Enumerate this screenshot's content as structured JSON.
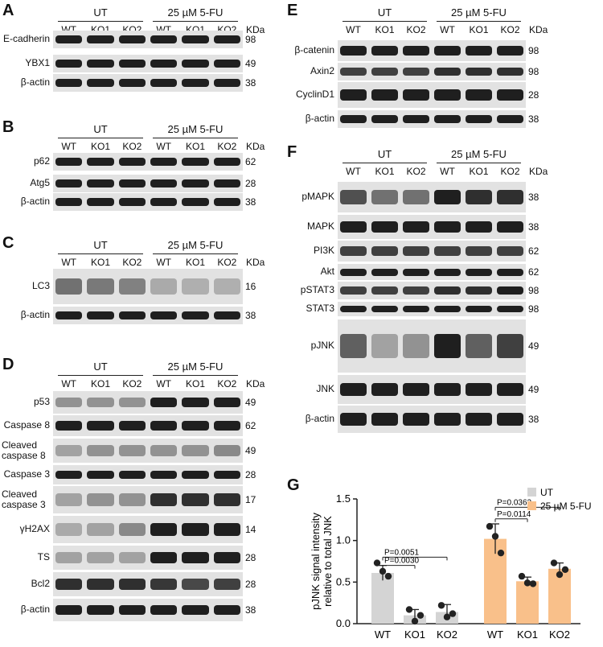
{
  "panels": [
    {
      "label": "A",
      "groups": [
        "UT",
        "25 µM 5-FU"
      ],
      "lanes": [
        "WT",
        "KO1",
        "KO2",
        "WT",
        "KO1",
        "KO2"
      ],
      "kda": "KDa",
      "rows": [
        {
          "name": "E-cadherin",
          "mw": [
            "98"
          ]
        },
        {
          "name": "YBX1",
          "mw": [
            "49"
          ]
        },
        {
          "name": "β-actin",
          "mw": [
            "38"
          ]
        }
      ]
    },
    {
      "label": "B",
      "groups": [
        "UT",
        "25 µM 5-FU"
      ],
      "lanes": [
        "WT",
        "KO1",
        "KO2",
        "WT",
        "KO1",
        "KO2"
      ],
      "kda": "KDa",
      "rows": [
        {
          "name": "p62",
          "mw": [
            "62"
          ]
        },
        {
          "name": "Atg5",
          "mw": [
            "28"
          ]
        },
        {
          "name": "β-actin",
          "mw": [
            "38"
          ]
        }
      ]
    },
    {
      "label": "C",
      "groups": [
        "UT",
        "25 µM 5-FU"
      ],
      "lanes": [
        "WT",
        "KO1",
        "KO2",
        "WT",
        "KO1",
        "KO2"
      ],
      "kda": "KDa",
      "rows": [
        {
          "name": "LC3",
          "mw": [
            "16"
          ]
        },
        {
          "name": "β-actin",
          "mw": [
            "38"
          ]
        }
      ]
    },
    {
      "label": "D",
      "groups": [
        "UT",
        "25 µM 5-FU"
      ],
      "lanes": [
        "WT",
        "KO1",
        "KO2",
        "WT",
        "KO1",
        "KO2"
      ],
      "kda": "KDa",
      "rows": [
        {
          "name": "p53",
          "mw": [
            "49"
          ]
        },
        {
          "name": "Caspase 8",
          "mw": [
            "62"
          ]
        },
        {
          "name": "Cleaved caspase 8",
          "mw": [
            "49"
          ]
        },
        {
          "name": "Caspase 3",
          "mw": [
            "28"
          ]
        },
        {
          "name": "Cleaved caspase 3",
          "mw": [
            "17"
          ]
        },
        {
          "name": "γH2AX",
          "mw": [
            "14"
          ]
        },
        {
          "name": "TS",
          "mw": [
            "28"
          ]
        },
        {
          "name": "Bcl2",
          "mw": [
            "28"
          ]
        },
        {
          "name": "β-actin",
          "mw": [
            "38"
          ]
        }
      ]
    },
    {
      "label": "E",
      "groups": [
        "UT",
        "25 µM 5-FU"
      ],
      "lanes": [
        "WT",
        "KO1",
        "KO2",
        "WT",
        "KO1",
        "KO2"
      ],
      "kda": "KDa",
      "rows": [
        {
          "name": "β-catenin",
          "mw": [
            "98"
          ]
        },
        {
          "name": "Axin2",
          "mw": [
            "98"
          ]
        },
        {
          "name": "CyclinD1",
          "mw": [
            "28"
          ]
        },
        {
          "name": "β-actin",
          "mw": [
            "38"
          ]
        }
      ]
    },
    {
      "label": "F",
      "groups": [
        "UT",
        "25 µM 5-FU"
      ],
      "lanes": [
        "WT",
        "KO1",
        "KO2",
        "WT",
        "KO1",
        "KO2"
      ],
      "kda": "KDa",
      "rows": [
        {
          "name": "pMAPK",
          "mw": [
            "38"
          ]
        },
        {
          "name": "MAPK",
          "mw": [
            "38"
          ]
        },
        {
          "name": "PI3K",
          "mw": [
            "62"
          ]
        },
        {
          "name": "Akt",
          "mw": [
            "62"
          ]
        },
        {
          "name": "pSTAT3",
          "mw": [
            "98"
          ]
        },
        {
          "name": "STAT3",
          "mw": [
            "98"
          ]
        },
        {
          "name": "pJNK",
          "mw": [
            "49"
          ]
        },
        {
          "name": "JNK",
          "mw": [
            "49"
          ]
        },
        {
          "name": "β-actin",
          "mw": [
            "38"
          ]
        }
      ]
    },
    {
      "label": "G"
    }
  ],
  "chart_data": {
    "type": "bar",
    "ylabel": "pJNK signal intensity relative to total JNK",
    "categories": [
      "WT",
      "KO1",
      "KO2",
      "WT",
      "KO1",
      "KO2"
    ],
    "series": [
      {
        "name": "UT",
        "color": "#d4d4d4"
      },
      {
        "name": "25 µM 5-FU",
        "color": "#f9c08a"
      }
    ],
    "values": [
      0.61,
      0.1,
      0.14,
      1.02,
      0.51,
      0.66
    ],
    "errors": [
      0.09,
      0.07,
      0.09,
      0.18,
      0.05,
      0.07
    ],
    "series_index": [
      0,
      0,
      0,
      1,
      1,
      1
    ],
    "points": [
      [
        0.73,
        0.63,
        0.57
      ],
      [
        0.17,
        0.03,
        0.1
      ],
      [
        0.22,
        0.08,
        0.12
      ],
      [
        1.17,
        1.05,
        0.85
      ],
      [
        0.57,
        0.49,
        0.48
      ],
      [
        0.73,
        0.59,
        0.65
      ]
    ],
    "ylim": [
      0,
      1.5
    ],
    "yticks": [
      "0.0",
      "0.5",
      "1.0",
      "1.5"
    ],
    "annotations": [
      {
        "from": 0,
        "to": 2,
        "text": "P=0.0051",
        "level": 0.8
      },
      {
        "from": 0,
        "to": 1,
        "text": "P=0.0030",
        "level": 0.7
      },
      {
        "from": 3,
        "to": 5,
        "text": "P=0.0362",
        "level": 1.4
      },
      {
        "from": 3,
        "to": 4,
        "text": "P=0.0114",
        "level": 1.26
      }
    ],
    "legend_position": "top-right"
  },
  "colors": {
    "ut": "#d4d4d4",
    "fu": "#f9c08a",
    "band": "#141414"
  }
}
